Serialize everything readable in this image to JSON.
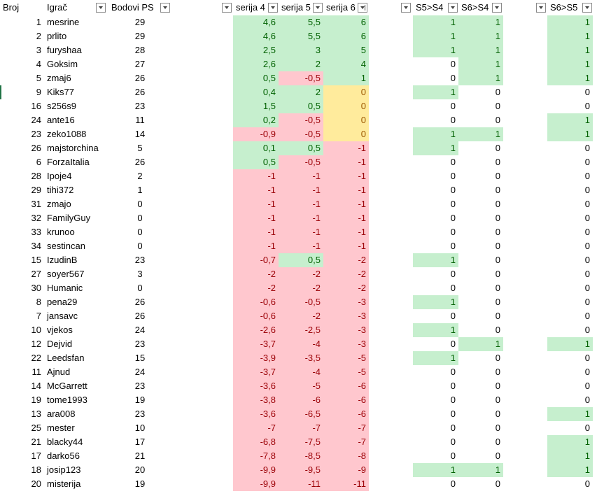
{
  "header": [
    "Broj",
    "Igrač",
    "Bodovi PS",
    "serija 4",
    "serija 5",
    "serija 6",
    "S5>S4",
    "S6>S4",
    "S6>S5"
  ],
  "rows": [
    [
      1,
      "mesrine",
      29,
      "4,6",
      "5,5",
      6,
      1,
      1,
      1
    ],
    [
      2,
      "prlito",
      29,
      "4,6",
      "5,5",
      6,
      1,
      1,
      1
    ],
    [
      3,
      "furyshaa",
      28,
      "2,5",
      3,
      5,
      1,
      1,
      1
    ],
    [
      4,
      "Goksim",
      27,
      "2,6",
      2,
      4,
      0,
      1,
      1
    ],
    [
      5,
      "zmaj6",
      26,
      "0,5",
      "-0,5",
      1,
      0,
      1,
      1
    ],
    [
      9,
      "Kiks77",
      26,
      "0,4",
      2,
      0,
      1,
      0,
      0
    ],
    [
      16,
      "s256s9",
      23,
      "1,5",
      "0,5",
      0,
      0,
      0,
      0
    ],
    [
      24,
      "ante16",
      11,
      "0,2",
      "-0,5",
      0,
      0,
      0,
      1
    ],
    [
      23,
      "zeko1088",
      14,
      "-0,9",
      "-0,5",
      0,
      1,
      1,
      1
    ],
    [
      26,
      "majstorchina",
      5,
      "0,1",
      "0,5",
      -1,
      1,
      0,
      0
    ],
    [
      6,
      "ForzaItalia",
      26,
      "0,5",
      "-0,5",
      -1,
      0,
      0,
      0
    ],
    [
      28,
      "Ipoje4",
      2,
      -1,
      -1,
      -1,
      0,
      0,
      0
    ],
    [
      29,
      "tihi372",
      1,
      -1,
      -1,
      -1,
      0,
      0,
      0
    ],
    [
      31,
      "zmajo",
      0,
      -1,
      -1,
      -1,
      0,
      0,
      0
    ],
    [
      32,
      "FamilyGuy",
      0,
      -1,
      -1,
      -1,
      0,
      0,
      0
    ],
    [
      33,
      "krunoo",
      0,
      -1,
      -1,
      -1,
      0,
      0,
      0
    ],
    [
      34,
      "sestincan",
      0,
      -1,
      -1,
      -1,
      0,
      0,
      0
    ],
    [
      15,
      "IzudinB",
      23,
      "-0,7",
      "0,5",
      -2,
      1,
      0,
      0
    ],
    [
      27,
      "soyer567",
      3,
      -2,
      -2,
      -2,
      0,
      0,
      0
    ],
    [
      30,
      "Humanic",
      0,
      -2,
      -2,
      -2,
      0,
      0,
      0
    ],
    [
      8,
      "pena29",
      26,
      "-0,6",
      "-0,5",
      -3,
      1,
      0,
      0
    ],
    [
      7,
      "jansavc",
      26,
      "-0,6",
      -2,
      -3,
      0,
      0,
      0
    ],
    [
      10,
      "vjekos",
      24,
      "-2,6",
      "-2,5",
      -3,
      1,
      0,
      0
    ],
    [
      12,
      "Dejvid",
      23,
      "-3,7",
      -4,
      -3,
      0,
      1,
      1
    ],
    [
      22,
      "Leedsfan",
      15,
      "-3,9",
      "-3,5",
      -5,
      1,
      0,
      0
    ],
    [
      11,
      "Ajnud",
      24,
      "-3,7",
      -4,
      -5,
      0,
      0,
      0
    ],
    [
      14,
      "McGarrett",
      23,
      "-3,6",
      -5,
      -6,
      0,
      0,
      0
    ],
    [
      19,
      "tome1993",
      19,
      "-3,8",
      -6,
      -6,
      0,
      0,
      0
    ],
    [
      13,
      "ara008",
      23,
      "-3,6",
      "-6,5",
      -6,
      0,
      0,
      1
    ],
    [
      25,
      "mester",
      10,
      -7,
      -7,
      -7,
      0,
      0,
      0
    ],
    [
      21,
      "blacky44",
      17,
      "-6,8",
      "-7,5",
      -7,
      0,
      0,
      1
    ],
    [
      17,
      "darko56",
      21,
      "-7,8",
      "-8,5",
      -8,
      0,
      0,
      1
    ],
    [
      18,
      "josip123",
      20,
      "-9,9",
      "-9,5",
      -9,
      1,
      1,
      1
    ],
    [
      20,
      "misterija",
      19,
      "-9,9",
      -11,
      -11,
      0,
      0,
      0
    ]
  ]
}
